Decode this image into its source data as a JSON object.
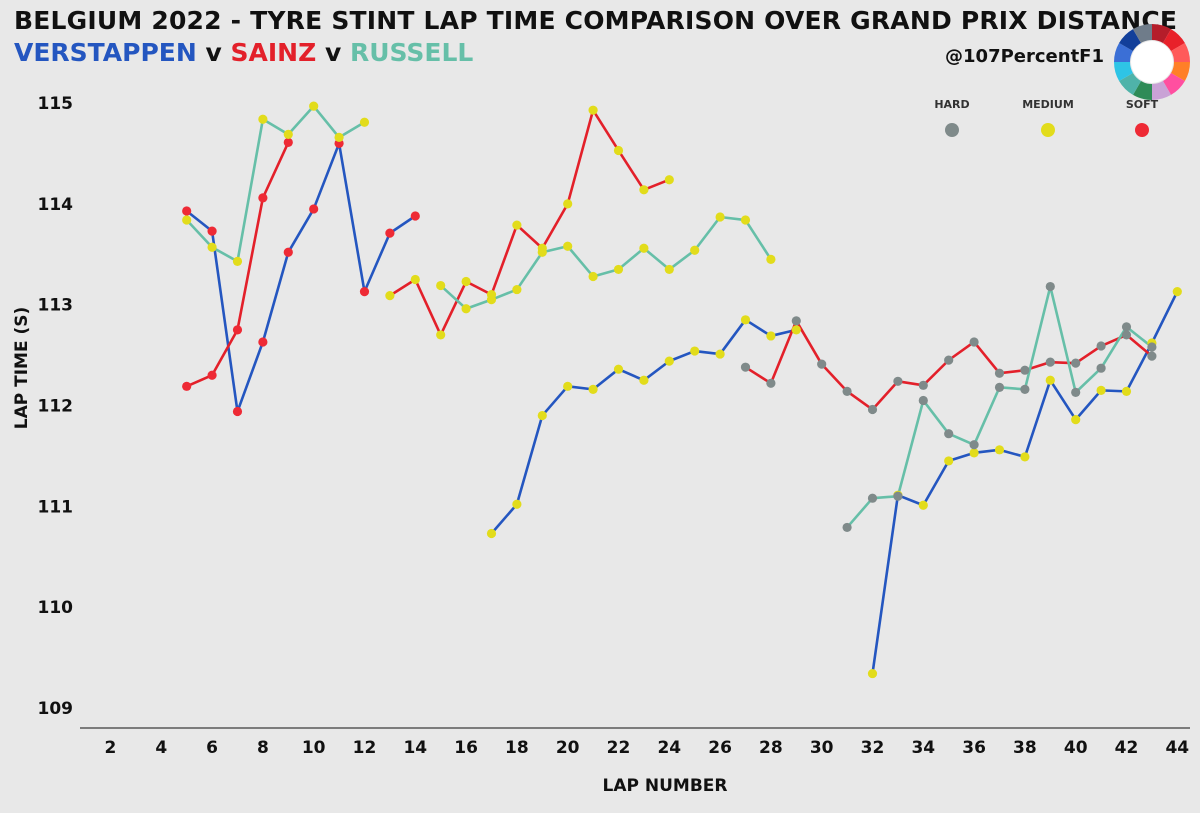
{
  "header": {
    "title": "BELGIUM 2022 - TYRE STINT LAP TIME COMPARISON OVER GRAND PRIX DISTANCE",
    "driver_a": "VERSTAPPEN",
    "vs1": "v",
    "driver_b": "SAINZ",
    "vs2": "v",
    "driver_c": "RUSSELL",
    "handle": "@107PercentF1"
  },
  "logo": {
    "icon": "donut-color-wheel-icon",
    "colors": [
      "#b51d2a",
      "#e8212a",
      "#ff5a5a",
      "#ff7f27",
      "#ff4fa0",
      "#c9a2d6",
      "#2e8b57",
      "#4fb3a9",
      "#2ec4e6",
      "#3b6fd6",
      "#123f9a",
      "#6f7c8a"
    ]
  },
  "chart_data": {
    "type": "scatter",
    "xlabel": "LAP NUMBER",
    "ylabel": "LAP TIME (S)",
    "xlim": [
      0.8,
      44.5
    ],
    "ylim": [
      108.8,
      115.15
    ],
    "xticks": [
      2,
      4,
      6,
      8,
      10,
      12,
      14,
      16,
      18,
      20,
      22,
      24,
      26,
      28,
      30,
      32,
      34,
      36,
      38,
      40,
      42,
      44
    ],
    "yticks": [
      109,
      110,
      111,
      112,
      113,
      114,
      115
    ],
    "grid": false,
    "legend": {
      "placement": "top-right",
      "entries": [
        {
          "label": "HARD",
          "color": "#7f8a8a"
        },
        {
          "label": "MEDIUM",
          "color": "#e2dc1b"
        },
        {
          "label": "SOFT",
          "color": "#ee2a35"
        }
      ]
    },
    "series": [
      {
        "name": "VERSTAPPEN",
        "color": "#2456c0",
        "stints": [
          {
            "compound": "SOFT",
            "points": [
              [
                5,
                113.93
              ],
              [
                6,
                113.73
              ],
              [
                7,
                111.94
              ],
              [
                8,
                112.63
              ],
              [
                9,
                113.52
              ],
              [
                10,
                113.95
              ],
              [
                11,
                114.6
              ],
              [
                12,
                113.13
              ],
              [
                13,
                113.71
              ],
              [
                14,
                113.88
              ]
            ]
          },
          {
            "compound": "MEDIUM",
            "points": [
              [
                17,
                110.73
              ],
              [
                18,
                111.02
              ],
              [
                19,
                111.9
              ],
              [
                20,
                112.19
              ],
              [
                21,
                112.16
              ],
              [
                22,
                112.36
              ],
              [
                23,
                112.25
              ],
              [
                24,
                112.44
              ],
              [
                25,
                112.54
              ],
              [
                26,
                112.51
              ],
              [
                27,
                112.85
              ],
              [
                28,
                112.69
              ],
              [
                29,
                112.75
              ]
            ]
          },
          {
            "compound": "MEDIUM",
            "points": [
              [
                32,
                109.34
              ],
              [
                33,
                111.11
              ],
              [
                34,
                111.01
              ],
              [
                35,
                111.45
              ],
              [
                36,
                111.53
              ],
              [
                37,
                111.56
              ],
              [
                38,
                111.49
              ],
              [
                39,
                112.25
              ],
              [
                40,
                111.86
              ],
              [
                41,
                112.15
              ],
              [
                42,
                112.14
              ],
              [
                43,
                112.62
              ],
              [
                44,
                113.13
              ]
            ]
          }
        ]
      },
      {
        "name": "SAINZ",
        "color": "#e3202a",
        "stints": [
          {
            "compound": "SOFT",
            "points": [
              [
                5,
                112.19
              ],
              [
                6,
                112.3
              ],
              [
                7,
                112.75
              ],
              [
                8,
                114.06
              ],
              [
                9,
                114.61
              ]
            ]
          },
          {
            "compound": "MEDIUM",
            "points": [
              [
                13,
                113.09
              ],
              [
                14,
                113.25
              ],
              [
                15,
                112.7
              ],
              [
                16,
                113.23
              ],
              [
                17,
                113.1
              ],
              [
                18,
                113.79
              ],
              [
                19,
                113.56
              ],
              [
                20,
                114.0
              ],
              [
                21,
                114.93
              ],
              [
                22,
                114.53
              ],
              [
                23,
                114.14
              ],
              [
                24,
                114.24
              ]
            ]
          },
          {
            "compound": "HARD",
            "points": [
              [
                27,
                112.38
              ],
              [
                28,
                112.22
              ],
              [
                29,
                112.84
              ],
              [
                30,
                112.41
              ],
              [
                31,
                112.14
              ],
              [
                32,
                111.96
              ],
              [
                33,
                112.24
              ],
              [
                34,
                112.2
              ],
              [
                35,
                112.45
              ],
              [
                36,
                112.63
              ],
              [
                37,
                112.32
              ],
              [
                38,
                112.35
              ],
              [
                39,
                112.43
              ],
              [
                40,
                112.42
              ],
              [
                41,
                112.59
              ],
              [
                42,
                112.7
              ],
              [
                43,
                112.49
              ]
            ]
          }
        ]
      },
      {
        "name": "RUSSELL",
        "color": "#66bfa8",
        "stints": [
          {
            "compound": "MEDIUM",
            "points": [
              [
                5,
                113.84
              ],
              [
                6,
                113.57
              ],
              [
                7,
                113.43
              ],
              [
                8,
                114.84
              ],
              [
                9,
                114.69
              ],
              [
                10,
                114.97
              ],
              [
                11,
                114.66
              ],
              [
                12,
                114.81
              ]
            ]
          },
          {
            "compound": "MEDIUM",
            "points": [
              [
                15,
                113.19
              ],
              [
                16,
                112.96
              ],
              [
                17,
                113.05
              ],
              [
                18,
                113.15
              ],
              [
                19,
                113.52
              ],
              [
                20,
                113.58
              ],
              [
                21,
                113.28
              ],
              [
                22,
                113.35
              ],
              [
                23,
                113.56
              ],
              [
                24,
                113.35
              ],
              [
                25,
                113.54
              ],
              [
                26,
                113.87
              ],
              [
                27,
                113.84
              ],
              [
                28,
                113.45
              ]
            ]
          },
          {
            "compound": "HARD",
            "points": [
              [
                31,
                110.79
              ],
              [
                32,
                111.08
              ],
              [
                33,
                111.1
              ],
              [
                34,
                112.05
              ],
              [
                35,
                111.72
              ],
              [
                36,
                111.61
              ],
              [
                37,
                112.18
              ],
              [
                38,
                112.16
              ],
              [
                39,
                113.18
              ],
              [
                40,
                112.13
              ],
              [
                41,
                112.37
              ],
              [
                42,
                112.78
              ],
              [
                43,
                112.58
              ]
            ]
          }
        ]
      }
    ]
  }
}
